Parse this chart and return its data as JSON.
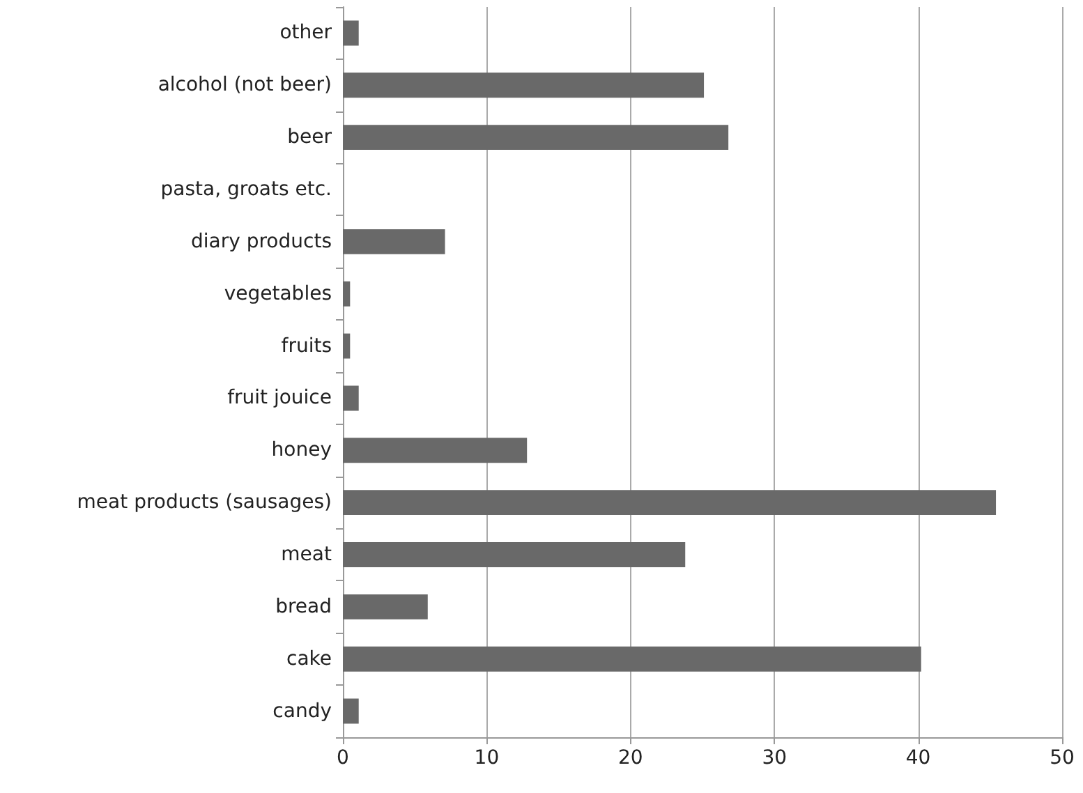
{
  "chart_data": {
    "type": "bar",
    "orientation": "horizontal",
    "categories": [
      "other",
      "alcohol (not beer)",
      "beer",
      "pasta, groats etc.",
      "diary products",
      "vegetables",
      "fruits",
      "fruit jouice",
      "honey",
      "meat products (sausages)",
      "meat",
      "bread",
      "cake",
      "candy"
    ],
    "values": [
      1.1,
      25.1,
      26.8,
      0,
      7.1,
      0.5,
      0.5,
      1.1,
      12.8,
      45.4,
      23.8,
      5.9,
      40.2,
      1.1
    ],
    "color": "#696969",
    "xlim": [
      0,
      50
    ],
    "xticks": [
      0,
      10,
      20,
      30,
      40,
      50
    ],
    "grid": "x"
  }
}
